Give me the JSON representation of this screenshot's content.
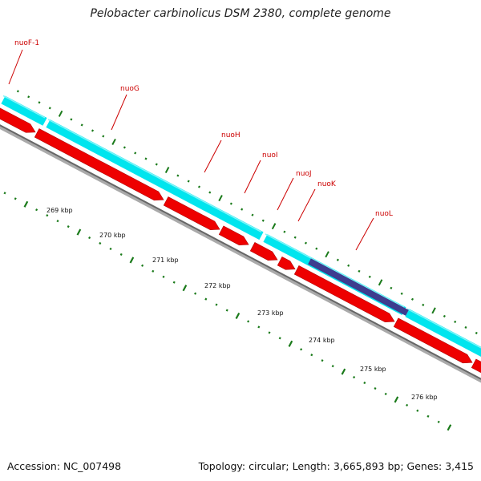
{
  "title": "Pelobacter carbinolicus DSM 2380, complete genome",
  "footer": {
    "accession": "Accession: NC_007498",
    "summary": "Topology: circular; Length: 3,665,893 bp; Genes: 3,415"
  },
  "colors": {
    "cds_track": "#00e5ee",
    "gene_arrow": "#ee0000",
    "highlight": "#3d3d8f",
    "backbone": "#888888",
    "tick": "#1a7a1a",
    "label": "#cc0000"
  },
  "genes": [
    {
      "name": "nuoF-1"
    },
    {
      "name": "nuoG"
    },
    {
      "name": "nuoH"
    },
    {
      "name": "nuoI"
    },
    {
      "name": "nuoJ"
    },
    {
      "name": "nuoK"
    },
    {
      "name": "nuoL"
    }
  ],
  "scale_labels": [
    "269 kbp",
    "270 kbp",
    "271 kbp",
    "272 kbp",
    "273 kbp",
    "274 kbp",
    "275 kbp",
    "276 kbp"
  ]
}
